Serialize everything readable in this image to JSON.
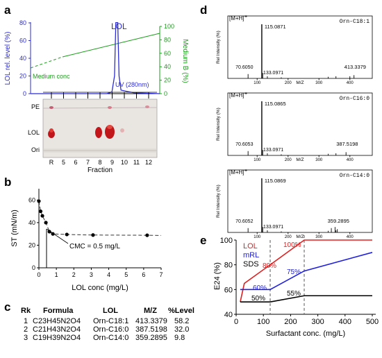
{
  "panels": {
    "a": {
      "letter": "a",
      "peak_label": "LOL",
      "uv_label": "UV (280nm)",
      "medium_label": "Medium conc",
      "left_axis_label": "LOL rel. level (%)",
      "right_axis_label": "Medium B (%)",
      "left_ticks": [
        "0",
        "20",
        "40",
        "60",
        "80"
      ],
      "right_ticks": [
        "0",
        "20",
        "40",
        "60",
        "80",
        "100"
      ],
      "left_color": "#2b2bd6",
      "right_color": "#1a9e1a",
      "tlc_labels": [
        "PE",
        "LOL",
        "Ori"
      ],
      "lanes": [
        "R",
        "5",
        "6",
        "7",
        "8",
        "9",
        "10",
        "11",
        "12"
      ],
      "fraction_label": "Fraction",
      "uv_trace": {
        "x": [
          0,
          1,
          2,
          3,
          4,
          5,
          6,
          7,
          8,
          9,
          10
        ],
        "y": [
          0,
          0,
          0,
          0,
          0,
          2,
          80,
          3,
          0,
          0,
          0
        ]
      },
      "medium_b": {
        "x": [
          0,
          10
        ],
        "y": [
          52,
          82
        ]
      }
    },
    "b": {
      "letter": "b",
      "ylabel": "ST (mN/m)",
      "xlabel": "LOL conc (mg/L)",
      "annotation": "CMC = 0.5 mg/L",
      "x_ticks": [
        "0",
        "1",
        "2",
        "3",
        "4",
        "5",
        "6",
        "7"
      ],
      "y_ticks": [
        "0",
        "20",
        "40",
        "60"
      ]
    },
    "c": {
      "letter": "c",
      "headers": [
        "Rk",
        "Formula",
        "LOL",
        "M/Z",
        "%Level"
      ],
      "rows": [
        [
          "1",
          "C23H45N2O4",
          "Orn-C18:1",
          "413.3379",
          "58.2"
        ],
        [
          "2",
          "C21H43N2O4",
          "Orn-C16:0",
          "387.5198",
          "32.0"
        ],
        [
          "3",
          "C19H39N2O4",
          "Orn-C14:0",
          "359.2895",
          "9.8"
        ]
      ]
    },
    "d": {
      "letter": "d",
      "spectra": [
        {
          "ion": "[M+H]",
          "sup": "+",
          "name": "Orn-C18:1",
          "base": "115.0871",
          "p1": "70.6050",
          "p2": "133.0971",
          "mz": "413.3379",
          "ylabel": "Rel Intensity (%)",
          "xlabel": "M/Z",
          "x_ticks": [
            "100",
            "200",
            "300",
            "400"
          ]
        },
        {
          "ion": "[M+H]",
          "sup": "+",
          "name": "Orn-C16:0",
          "base": "115.0865",
          "p1": "70.6053",
          "p2": "133.0971",
          "mz": "387.5198",
          "ylabel": "Rel Intensity (%)",
          "xlabel": "M/Z",
          "x_ticks": [
            "100",
            "200",
            "300",
            "400"
          ]
        },
        {
          "ion": "[M+H]",
          "sup": "+",
          "name": "Orn-C14:0",
          "base": "115.0869",
          "p1": "70.6052",
          "p2": "133.0971",
          "mz": "359.2895",
          "ylabel": "Rel Intensity (%)",
          "xlabel": "M/Z",
          "x_ticks": [
            "100",
            "200",
            "300",
            "400"
          ]
        }
      ]
    },
    "e": {
      "letter": "e",
      "ylabel": "E24 (%)",
      "xlabel": "Surfactant conc. (mg/L)",
      "legend": [
        {
          "name": "LOL",
          "color": "#e02020"
        },
        {
          "name": "mRL",
          "color": "#2020e0"
        },
        {
          "name": "SDS",
          "color": "#000000"
        }
      ],
      "labels": {
        "lol_80": "80%",
        "lol_100": "100%",
        "mrl_60": "60%",
        "mrl_75": "75%",
        "sds_50": "50%",
        "sds_55": "55%"
      }
    }
  },
  "chart_data": [
    {
      "type": "scatter",
      "title": "",
      "xlabel": "LOL conc (mg/L)",
      "ylabel": "ST (mN/m)",
      "xlim": [
        0,
        7
      ],
      "ylim": [
        0,
        70
      ],
      "series": [
        {
          "x": [
            0.0,
            0.1,
            0.2,
            0.4,
            0.6,
            0.8,
            1.6,
            3.1,
            6.2
          ],
          "y": [
            59,
            50,
            46,
            40,
            32,
            30,
            29.5,
            29,
            28.8
          ]
        }
      ]
    },
    {
      "type": "line",
      "title": "",
      "xlabel": "Surfactant conc. (mg/L)",
      "ylabel": "E24 (%)",
      "xlim": [
        0,
        500
      ],
      "ylim": [
        40,
        100
      ],
      "series": [
        {
          "name": "LOL",
          "x": [
            15,
            30,
            125,
            250,
            500
          ],
          "y": [
            50,
            65,
            80,
            100,
            100
          ]
        },
        {
          "name": "mRL",
          "x": [
            15,
            125,
            250,
            500
          ],
          "y": [
            60,
            60,
            75,
            90
          ]
        },
        {
          "name": "SDS",
          "x": [
            15,
            125,
            250,
            500
          ],
          "y": [
            50,
            50,
            55,
            55
          ]
        }
      ]
    }
  ]
}
